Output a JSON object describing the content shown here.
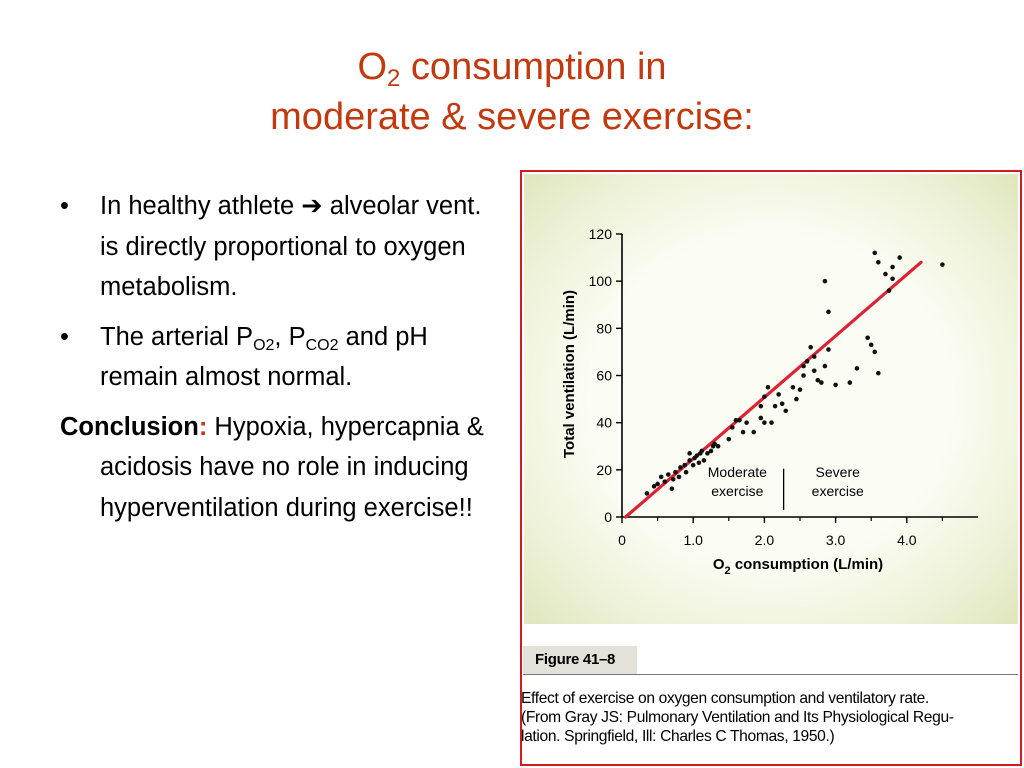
{
  "slide": {
    "title_line1_pre": "O",
    "title_line1_sub": "2",
    "title_line1_post": " consumption in",
    "title_line2": "moderate & severe exercise:",
    "bullet_symbol": "•",
    "bullet1_text": "In healthy athlete ➔ alveolar vent. is directly proportional to oxygen metabolism.",
    "bullet2_pre": "The arterial P",
    "bullet2_sub1": "O2",
    "bullet2_mid": ", P",
    "bullet2_sub2": "CO2",
    "bullet2_post": " and pH remain almost normal.",
    "conclusion_label": "Conclusion",
    "conclusion_colon": ":",
    "conclusion_text": " Hypoxia, hypercapnia & acidosis have no role in inducing hyperventilation during exercise!!"
  },
  "figure": {
    "label": "Figure 41–8",
    "caption_lines": [
      "Effect of exercise on oxygen consumption and ventilatory rate.",
      "(From Gray JS: Pulmonary Ventilation and Its Physiological Regu-",
      "lation. Springfield, Ill: Charles C Thomas, 1950.)"
    ]
  },
  "colors": {
    "title": "#c0390f",
    "frame": "#d11b24",
    "regression_line": "#dd2233",
    "points": "#111111"
  },
  "chart_data": {
    "type": "scatter",
    "xlabel_pre": "O",
    "xlabel_sub": "2",
    "xlabel_post": " consumption (L/min)",
    "ylabel": "Total ventilation (L/min)",
    "xlim": [
      0,
      5.0
    ],
    "ylim": [
      0,
      120
    ],
    "x_ticks": [
      0,
      1.0,
      2.0,
      3.0,
      4.0
    ],
    "x_tick_labels": [
      "0",
      "1.0",
      "2.0",
      "3.0",
      "4.0"
    ],
    "y_ticks": [
      0,
      20,
      40,
      60,
      80,
      100,
      120
    ],
    "y_tick_labels": [
      "0",
      "20",
      "40",
      "60",
      "80",
      "100",
      "120"
    ],
    "grid": false,
    "annotations": [
      {
        "lines": [
          "Moderate",
          "exercise"
        ]
      },
      {
        "lines": [
          "Severe",
          "exercise"
        ]
      }
    ],
    "divider_x": 2.27,
    "trend_line": {
      "x": [
        0.05,
        4.2
      ],
      "y": [
        0,
        108
      ]
    },
    "points": [
      [
        0.35,
        10
      ],
      [
        0.45,
        13
      ],
      [
        0.5,
        14
      ],
      [
        0.55,
        17
      ],
      [
        0.6,
        15
      ],
      [
        0.65,
        18
      ],
      [
        0.7,
        12
      ],
      [
        0.72,
        16
      ],
      [
        0.75,
        19
      ],
      [
        0.8,
        17
      ],
      [
        0.82,
        21
      ],
      [
        0.88,
        22
      ],
      [
        0.9,
        19
      ],
      [
        0.95,
        24
      ],
      [
        0.95,
        27
      ],
      [
        1.0,
        22
      ],
      [
        1.02,
        25
      ],
      [
        1.05,
        26
      ],
      [
        1.08,
        23
      ],
      [
        1.1,
        27
      ],
      [
        1.12,
        28
      ],
      [
        1.15,
        24
      ],
      [
        1.2,
        27
      ],
      [
        1.25,
        28
      ],
      [
        1.28,
        30
      ],
      [
        1.3,
        31
      ],
      [
        1.35,
        30
      ],
      [
        1.5,
        33
      ],
      [
        1.55,
        38
      ],
      [
        1.6,
        41
      ],
      [
        1.65,
        41
      ],
      [
        1.7,
        36
      ],
      [
        1.75,
        40
      ],
      [
        1.85,
        36
      ],
      [
        1.95,
        47
      ],
      [
        1.95,
        42
      ],
      [
        2.0,
        51
      ],
      [
        2.0,
        40
      ],
      [
        2.05,
        55
      ],
      [
        2.1,
        40
      ],
      [
        2.15,
        47
      ],
      [
        2.2,
        52
      ],
      [
        2.25,
        48
      ],
      [
        2.3,
        45
      ],
      [
        2.4,
        55
      ],
      [
        2.45,
        50
      ],
      [
        2.5,
        54
      ],
      [
        2.55,
        60
      ],
      [
        2.55,
        64
      ],
      [
        2.6,
        66
      ],
      [
        2.65,
        72
      ],
      [
        2.7,
        68
      ],
      [
        2.7,
        62
      ],
      [
        2.75,
        58
      ],
      [
        2.8,
        57
      ],
      [
        2.85,
        64
      ],
      [
        2.9,
        71
      ],
      [
        3.0,
        56
      ],
      [
        3.2,
        57
      ],
      [
        3.3,
        63
      ],
      [
        3.45,
        76
      ],
      [
        3.5,
        73
      ],
      [
        3.55,
        70
      ],
      [
        3.6,
        61
      ],
      [
        2.85,
        100
      ],
      [
        2.9,
        87
      ],
      [
        3.55,
        112
      ],
      [
        3.6,
        108
      ],
      [
        3.7,
        103
      ],
      [
        3.75,
        96
      ],
      [
        3.8,
        101
      ],
      [
        3.9,
        110
      ],
      [
        3.8,
        106
      ],
      [
        4.5,
        107
      ]
    ]
  }
}
